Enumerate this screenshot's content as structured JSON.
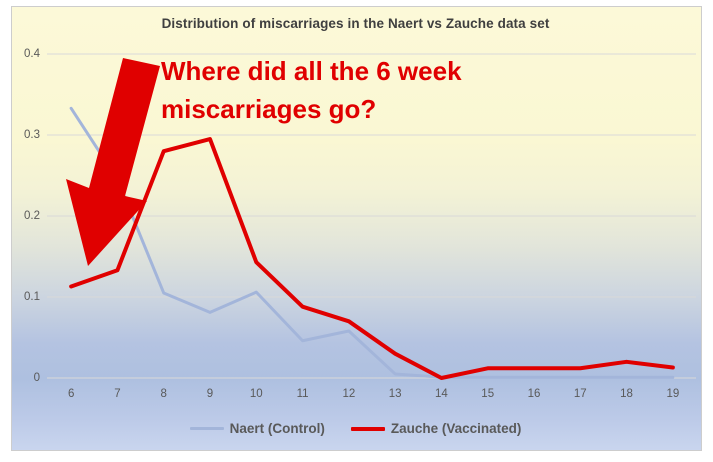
{
  "chart_data": {
    "type": "line",
    "title": "Distribution of miscarriages in the Naert vs Zauche data set",
    "x": [
      6,
      7,
      8,
      9,
      10,
      11,
      12,
      13,
      14,
      15,
      16,
      17,
      18,
      19
    ],
    "series": [
      {
        "name": "Naert (Control)",
        "color": "#a3b5da",
        "values": [
          0.333,
          0.245,
          0.105,
          0.081,
          0.106,
          0.046,
          0.058,
          0.005,
          0.001,
          0.001,
          0.001,
          0.001,
          0.001,
          0.001
        ]
      },
      {
        "name": "Zauche (Vaccinated)",
        "color": "#e00000",
        "values": [
          0.113,
          0.133,
          0.28,
          0.295,
          0.143,
          0.088,
          0.07,
          0.03,
          0.0,
          0.012,
          0.012,
          0.012,
          0.02,
          0.013
        ]
      }
    ],
    "xlabel": "",
    "ylabel": "",
    "ylim": [
      0,
      0.4
    ],
    "yticks": [
      0,
      0.1,
      0.2,
      0.3,
      0.4
    ],
    "ytick_labels": [
      "0",
      "0.1",
      "0.2",
      "0.3",
      "0.4"
    ],
    "grid": true,
    "legend_position": "bottom"
  },
  "annotation": {
    "line1": "Where did all the 6 week",
    "line2": "miscarriages go?",
    "color": "#e00000",
    "arrow": "down-left-arrow"
  },
  "colors": {
    "title_text": "#3f3f3f",
    "axis_text": "#595959",
    "gridline": "#d9d9d9",
    "background_top": "#fcf9d8",
    "background_bottom": "#aec0e0",
    "panel_border": "#cdcdcd"
  }
}
